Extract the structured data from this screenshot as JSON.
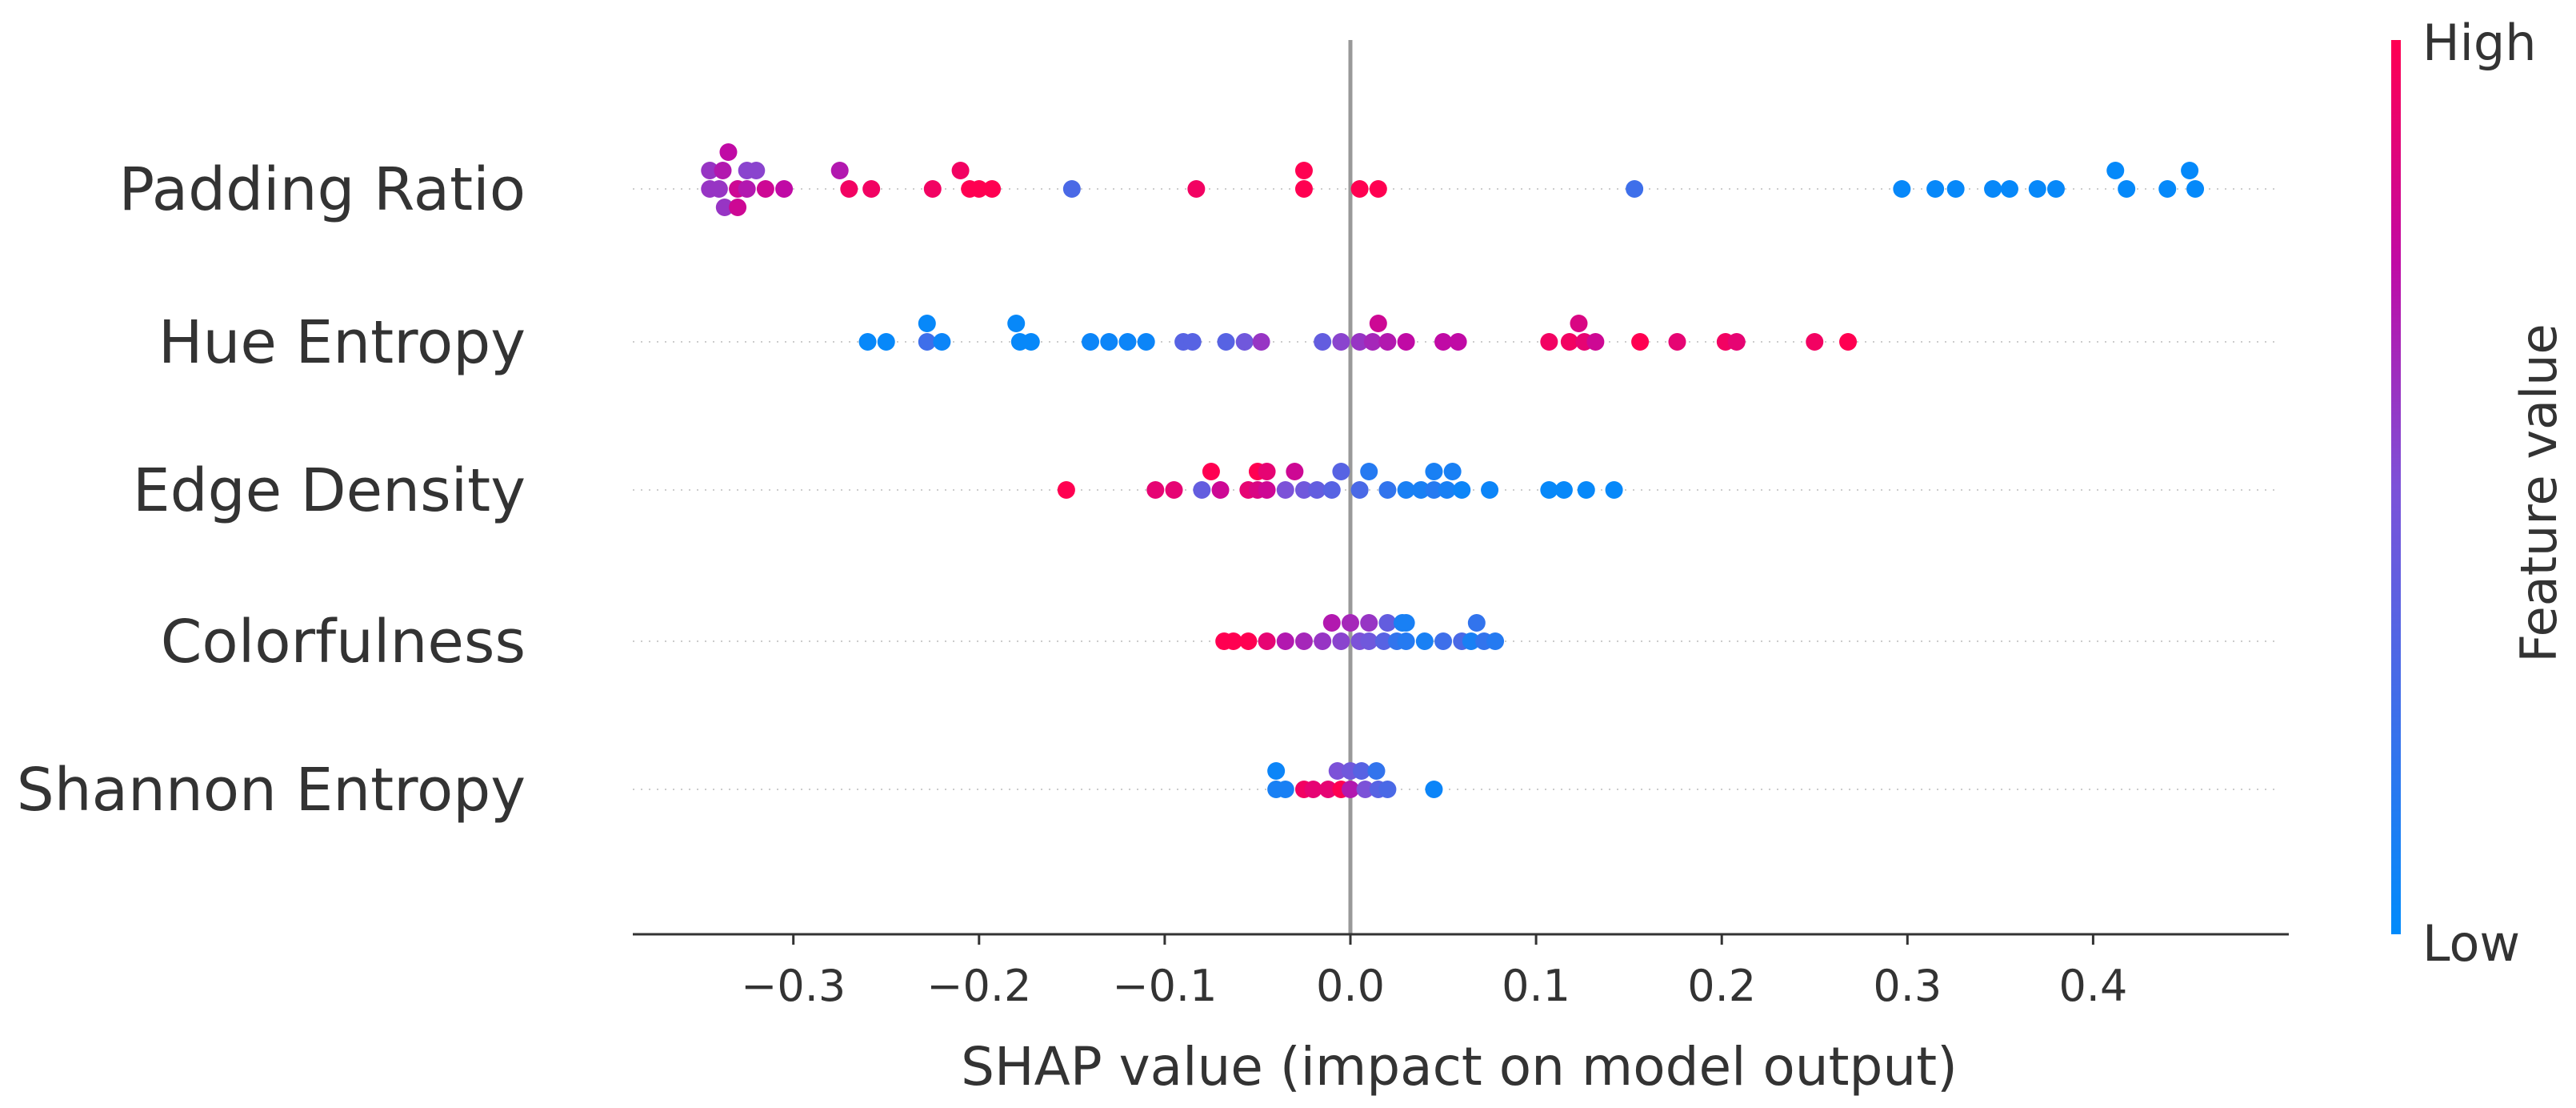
{
  "chart_data": {
    "type": "scatter",
    "subtype": "shap-beeswarm",
    "title": "",
    "xlabel": "SHAP value (impact on model output)",
    "ylabel": "",
    "xlim": [
      -0.38,
      0.49
    ],
    "xticks": [
      -0.3,
      -0.2,
      -0.1,
      0.0,
      0.1,
      0.2,
      0.3,
      0.4
    ],
    "xtick_labels": [
      "−0.3",
      "−0.2",
      "−0.1",
      "0.0",
      "0.1",
      "0.2",
      "0.3",
      "0.4"
    ],
    "grid": false,
    "colorbar": {
      "label": "Feature value",
      "high_label": "High",
      "low_label": "Low",
      "low_color": "#008bfb",
      "high_color": "#ff0051"
    },
    "features": [
      {
        "name": "Padding Ratio",
        "points": [
          [
            -0.335,
            2,
            0.75
          ],
          [
            -0.345,
            1,
            0.6
          ],
          [
            -0.338,
            1,
            0.7
          ],
          [
            -0.325,
            1,
            0.55
          ],
          [
            -0.32,
            1,
            0.55
          ],
          [
            -0.345,
            0,
            0.6
          ],
          [
            -0.34,
            0,
            0.6
          ],
          [
            -0.33,
            0,
            0.8
          ],
          [
            -0.325,
            0,
            0.7
          ],
          [
            -0.315,
            0,
            0.8
          ],
          [
            -0.305,
            0,
            0.75
          ],
          [
            -0.337,
            -1,
            0.6
          ],
          [
            -0.33,
            -1,
            0.8
          ],
          [
            -0.275,
            1,
            0.7
          ],
          [
            -0.27,
            0,
            0.95
          ],
          [
            -0.258,
            0,
            0.95
          ],
          [
            -0.21,
            1,
            0.95
          ],
          [
            -0.225,
            0,
            0.95
          ],
          [
            -0.205,
            0,
            1
          ],
          [
            -0.2,
            0,
            1
          ],
          [
            -0.193,
            0,
            1
          ],
          [
            -0.15,
            0,
            0.3
          ],
          [
            -0.083,
            0,
            0.95
          ],
          [
            -0.025,
            1,
            1
          ],
          [
            -0.025,
            0,
            1
          ],
          [
            0.005,
            0,
            1
          ],
          [
            0.015,
            0,
            1
          ],
          [
            0.153,
            0,
            0.25
          ],
          [
            0.297,
            0,
            0.03
          ],
          [
            0.315,
            0,
            0.03
          ],
          [
            0.326,
            0,
            0.03
          ],
          [
            0.346,
            0,
            0.03
          ],
          [
            0.355,
            0,
            0.03
          ],
          [
            0.37,
            0,
            0.03
          ],
          [
            0.38,
            0,
            0.03
          ],
          [
            0.412,
            1,
            0.02
          ],
          [
            0.418,
            0,
            0.02
          ],
          [
            0.44,
            0,
            0.02
          ],
          [
            0.452,
            1,
            0.02
          ],
          [
            0.455,
            0,
            0.02
          ]
        ]
      },
      {
        "name": "Hue Entropy",
        "points": [
          [
            -0.228,
            1,
            0.03
          ],
          [
            -0.18,
            1,
            0.03
          ],
          [
            0.015,
            1,
            0.8
          ],
          [
            0.123,
            1,
            0.85
          ],
          [
            -0.26,
            0,
            0.03
          ],
          [
            -0.25,
            0,
            0.03
          ],
          [
            -0.228,
            0,
            0.25
          ],
          [
            -0.22,
            0,
            0.05
          ],
          [
            -0.178,
            0,
            0.03
          ],
          [
            -0.172,
            0,
            0.03
          ],
          [
            -0.14,
            0,
            0.05
          ],
          [
            -0.13,
            0,
            0.05
          ],
          [
            -0.12,
            0,
            0.05
          ],
          [
            -0.11,
            0,
            0.05
          ],
          [
            -0.09,
            0,
            0.35
          ],
          [
            -0.085,
            0,
            0.35
          ],
          [
            -0.067,
            0,
            0.35
          ],
          [
            -0.057,
            0,
            0.45
          ],
          [
            -0.048,
            0,
            0.6
          ],
          [
            -0.015,
            0,
            0.4
          ],
          [
            -0.005,
            0,
            0.55
          ],
          [
            0.005,
            0,
            0.6
          ],
          [
            0.012,
            0,
            0.65
          ],
          [
            0.02,
            0,
            0.7
          ],
          [
            0.03,
            0,
            0.75
          ],
          [
            0.05,
            0,
            0.75
          ],
          [
            0.058,
            0,
            0.75
          ],
          [
            0.107,
            0,
            0.95
          ],
          [
            0.118,
            0,
            0.95
          ],
          [
            0.126,
            0,
            0.9
          ],
          [
            0.132,
            0,
            0.8
          ],
          [
            0.156,
            0,
            1
          ],
          [
            0.176,
            0,
            0.9
          ],
          [
            0.202,
            0,
            0.95
          ],
          [
            0.208,
            0,
            0.9
          ],
          [
            0.25,
            0,
            0.95
          ],
          [
            0.268,
            0,
            1
          ]
        ]
      },
      {
        "name": "Edge Density",
        "points": [
          [
            -0.075,
            1,
            1
          ],
          [
            -0.05,
            1,
            1
          ],
          [
            -0.045,
            1,
            0.9
          ],
          [
            -0.03,
            1,
            0.8
          ],
          [
            -0.005,
            1,
            0.35
          ],
          [
            0.01,
            1,
            0.15
          ],
          [
            0.045,
            1,
            0.1
          ],
          [
            0.055,
            1,
            0.1
          ],
          [
            -0.153,
            0,
            1
          ],
          [
            -0.105,
            0,
            0.9
          ],
          [
            -0.095,
            0,
            0.9
          ],
          [
            -0.08,
            0,
            0.4
          ],
          [
            -0.07,
            0,
            0.8
          ],
          [
            -0.055,
            0,
            0.9
          ],
          [
            -0.05,
            0,
            0.85
          ],
          [
            -0.045,
            0,
            0.8
          ],
          [
            -0.035,
            0,
            0.5
          ],
          [
            -0.025,
            0,
            0.45
          ],
          [
            -0.018,
            0,
            0.4
          ],
          [
            -0.01,
            0,
            0.35
          ],
          [
            0.005,
            0,
            0.3
          ],
          [
            0.02,
            0,
            0.2
          ],
          [
            0.03,
            0,
            0.1
          ],
          [
            0.038,
            0,
            0.1
          ],
          [
            0.045,
            0,
            0.15
          ],
          [
            0.052,
            0,
            0.1
          ],
          [
            0.06,
            0,
            0.05
          ],
          [
            0.075,
            0,
            0.05
          ],
          [
            0.107,
            0,
            0.03
          ],
          [
            0.115,
            0,
            0.03
          ],
          [
            0.127,
            0,
            0.03
          ],
          [
            0.142,
            0,
            0.03
          ]
        ]
      },
      {
        "name": "Colorfulness",
        "points": [
          [
            -0.01,
            1,
            0.7
          ],
          [
            0.0,
            1,
            0.65
          ],
          [
            0.01,
            1,
            0.6
          ],
          [
            0.02,
            1,
            0.4
          ],
          [
            0.028,
            1,
            0.1
          ],
          [
            0.03,
            1,
            0.1
          ],
          [
            0.068,
            1,
            0.2
          ],
          [
            -0.068,
            0,
            1
          ],
          [
            -0.063,
            0,
            1
          ],
          [
            -0.055,
            0,
            1
          ],
          [
            -0.045,
            0,
            0.9
          ],
          [
            -0.035,
            0,
            0.7
          ],
          [
            -0.025,
            0,
            0.65
          ],
          [
            -0.015,
            0,
            0.6
          ],
          [
            -0.005,
            0,
            0.55
          ],
          [
            0.005,
            0,
            0.5
          ],
          [
            0.01,
            0,
            0.45
          ],
          [
            0.018,
            0,
            0.35
          ],
          [
            0.025,
            0,
            0.2
          ],
          [
            0.03,
            0,
            0.15
          ],
          [
            0.04,
            0,
            0.1
          ],
          [
            0.05,
            0,
            0.25
          ],
          [
            0.06,
            0,
            0.3
          ],
          [
            0.065,
            0,
            0.1
          ],
          [
            0.072,
            0,
            0.2
          ],
          [
            0.078,
            0,
            0.15
          ]
        ]
      },
      {
        "name": "Shannon Entropy",
        "points": [
          [
            -0.04,
            1,
            0.05
          ],
          [
            -0.007,
            1,
            0.5
          ],
          [
            0.0,
            1,
            0.45
          ],
          [
            0.006,
            1,
            0.35
          ],
          [
            0.014,
            1,
            0.2
          ],
          [
            -0.04,
            0,
            0.1
          ],
          [
            -0.035,
            0,
            0.1
          ],
          [
            -0.025,
            0,
            0.95
          ],
          [
            -0.02,
            0,
            0.9
          ],
          [
            -0.012,
            0,
            0.9
          ],
          [
            -0.005,
            0,
            1
          ],
          [
            0.0,
            0,
            0.7
          ],
          [
            0.008,
            0,
            0.5
          ],
          [
            0.015,
            0,
            0.35
          ],
          [
            0.02,
            0,
            0.3
          ],
          [
            0.045,
            0,
            0.05
          ]
        ]
      }
    ],
    "point_format": [
      "shap_value",
      "beeswarm_stack_level",
      "feature_value_normalized"
    ]
  }
}
